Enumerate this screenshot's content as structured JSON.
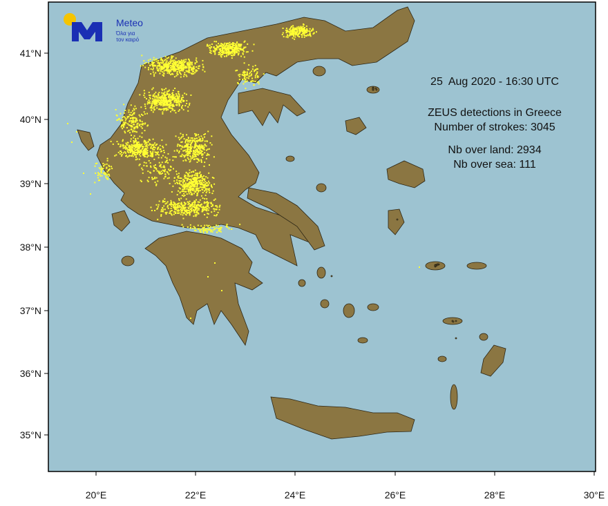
{
  "logo": {
    "brand": "Meteo",
    "tagline_line1": "Όλα για",
    "tagline_line2": "τον καιρό"
  },
  "annotation": {
    "datetime": "25  Aug 2020 - 16:30 UTC",
    "title": "ZEUS detections in Greece",
    "strokes": "Number of strokes: 3045",
    "over_land": "Nb over land: 2934",
    "over_sea": "Nb over sea: 111"
  },
  "axes": {
    "lat_ticks": [
      "41°N",
      "40°N",
      "39°N",
      "38°N",
      "37°N",
      "36°N",
      "35°N"
    ],
    "lon_ticks": [
      "20°E",
      "22°E",
      "24°E",
      "26°E",
      "28°E",
      "30°E"
    ]
  },
  "colors": {
    "sea": "#9dc3d1",
    "land": "#8b7642",
    "strike": "#ffff33",
    "logo_blue": "#1a2fb4",
    "logo_sun": "#f5c400"
  }
}
